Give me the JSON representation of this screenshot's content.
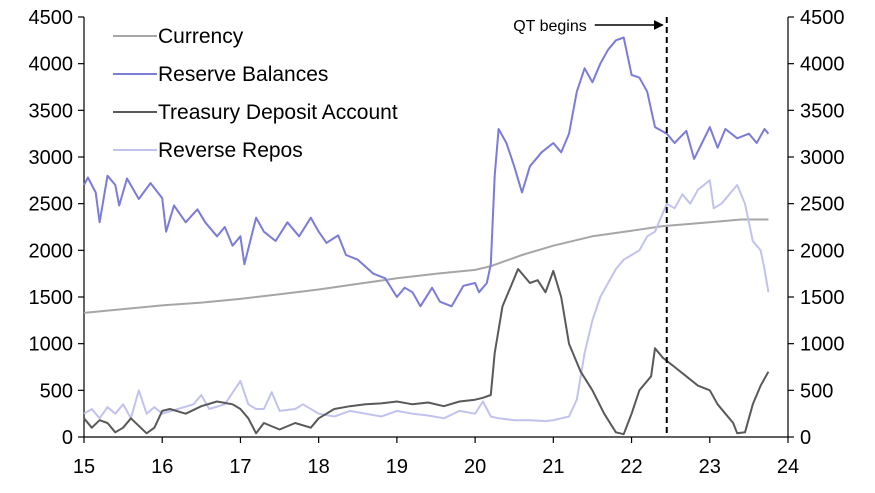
{
  "chart_data": {
    "type": "line",
    "title": "",
    "xlabel": "",
    "ylabel": "",
    "xlim": [
      15,
      24
    ],
    "ylim": [
      0,
      4500
    ],
    "y2lim": [
      0,
      4500
    ],
    "x_ticks": [
      "15",
      "16",
      "17",
      "18",
      "19",
      "20",
      "21",
      "22",
      "23",
      "24"
    ],
    "y_ticks": [
      "0",
      "500",
      "1000",
      "1500",
      "2000",
      "2500",
      "3000",
      "3500",
      "4000",
      "4500"
    ],
    "y2_ticks": [
      "0",
      "500",
      "1000",
      "1500",
      "2000",
      "2500",
      "3000",
      "3500",
      "4000",
      "4500"
    ],
    "grid": false,
    "legend_position": "top-left",
    "colors": {
      "currency": "#a6a6a6",
      "reserve_balances": "#7b7bd9",
      "treasury_deposit_account": "#595959",
      "reverse_repos": "#c2c2ef"
    },
    "series": [
      {
        "name": "Currency",
        "color": "#a6a6a6",
        "points": [
          [
            15.0,
            1330
          ],
          [
            15.5,
            1370
          ],
          [
            16.0,
            1410
          ],
          [
            16.5,
            1440
          ],
          [
            17.0,
            1480
          ],
          [
            17.5,
            1530
          ],
          [
            18.0,
            1580
          ],
          [
            18.5,
            1640
          ],
          [
            19.0,
            1700
          ],
          [
            19.5,
            1750
          ],
          [
            20.0,
            1790
          ],
          [
            20.2,
            1830
          ],
          [
            20.4,
            1890
          ],
          [
            20.6,
            1950
          ],
          [
            21.0,
            2050
          ],
          [
            21.5,
            2150
          ],
          [
            22.0,
            2210
          ],
          [
            22.4,
            2260
          ],
          [
            23.0,
            2300
          ],
          [
            23.4,
            2330
          ],
          [
            23.75,
            2330
          ]
        ]
      },
      {
        "name": "Reserve Balances",
        "color": "#7b7bd9",
        "points": [
          [
            15.0,
            2700
          ],
          [
            15.05,
            2780
          ],
          [
            15.15,
            2620
          ],
          [
            15.2,
            2300
          ],
          [
            15.3,
            2800
          ],
          [
            15.4,
            2700
          ],
          [
            15.45,
            2480
          ],
          [
            15.55,
            2770
          ],
          [
            15.7,
            2550
          ],
          [
            15.85,
            2720
          ],
          [
            16.0,
            2560
          ],
          [
            16.05,
            2200
          ],
          [
            16.15,
            2480
          ],
          [
            16.3,
            2300
          ],
          [
            16.45,
            2440
          ],
          [
            16.55,
            2300
          ],
          [
            16.7,
            2150
          ],
          [
            16.8,
            2250
          ],
          [
            16.9,
            2050
          ],
          [
            17.0,
            2150
          ],
          [
            17.05,
            1850
          ],
          [
            17.2,
            2350
          ],
          [
            17.3,
            2200
          ],
          [
            17.45,
            2100
          ],
          [
            17.6,
            2300
          ],
          [
            17.75,
            2150
          ],
          [
            17.9,
            2350
          ],
          [
            18.0,
            2200
          ],
          [
            18.1,
            2080
          ],
          [
            18.25,
            2160
          ],
          [
            18.35,
            1950
          ],
          [
            18.5,
            1900
          ],
          [
            18.7,
            1750
          ],
          [
            18.85,
            1700
          ],
          [
            19.0,
            1500
          ],
          [
            19.1,
            1600
          ],
          [
            19.2,
            1550
          ],
          [
            19.3,
            1400
          ],
          [
            19.45,
            1600
          ],
          [
            19.55,
            1450
          ],
          [
            19.7,
            1400
          ],
          [
            19.85,
            1620
          ],
          [
            20.0,
            1650
          ],
          [
            20.05,
            1550
          ],
          [
            20.15,
            1650
          ],
          [
            20.2,
            1850
          ],
          [
            20.25,
            2800
          ],
          [
            20.3,
            3300
          ],
          [
            20.4,
            3150
          ],
          [
            20.5,
            2900
          ],
          [
            20.6,
            2620
          ],
          [
            20.7,
            2900
          ],
          [
            20.85,
            3050
          ],
          [
            21.0,
            3150
          ],
          [
            21.1,
            3050
          ],
          [
            21.2,
            3250
          ],
          [
            21.3,
            3700
          ],
          [
            21.4,
            3950
          ],
          [
            21.5,
            3800
          ],
          [
            21.6,
            4000
          ],
          [
            21.7,
            4150
          ],
          [
            21.8,
            4250
          ],
          [
            21.9,
            4280
          ],
          [
            22.0,
            3880
          ],
          [
            22.1,
            3850
          ],
          [
            22.2,
            3700
          ],
          [
            22.3,
            3320
          ],
          [
            22.45,
            3250
          ],
          [
            22.55,
            3150
          ],
          [
            22.7,
            3280
          ],
          [
            22.8,
            2980
          ],
          [
            22.9,
            3150
          ],
          [
            23.0,
            3320
          ],
          [
            23.1,
            3100
          ],
          [
            23.2,
            3300
          ],
          [
            23.35,
            3200
          ],
          [
            23.5,
            3250
          ],
          [
            23.6,
            3150
          ],
          [
            23.7,
            3300
          ],
          [
            23.75,
            3250
          ]
        ]
      },
      {
        "name": "Treasury Deposit Account",
        "color": "#595959",
        "points": [
          [
            15.0,
            200
          ],
          [
            15.1,
            100
          ],
          [
            15.2,
            180
          ],
          [
            15.3,
            150
          ],
          [
            15.4,
            50
          ],
          [
            15.5,
            100
          ],
          [
            15.6,
            200
          ],
          [
            15.8,
            40
          ],
          [
            15.9,
            100
          ],
          [
            16.0,
            280
          ],
          [
            16.1,
            300
          ],
          [
            16.3,
            250
          ],
          [
            16.5,
            330
          ],
          [
            16.7,
            380
          ],
          [
            16.9,
            350
          ],
          [
            17.0,
            300
          ],
          [
            17.1,
            200
          ],
          [
            17.2,
            40
          ],
          [
            17.3,
            150
          ],
          [
            17.5,
            80
          ],
          [
            17.7,
            150
          ],
          [
            17.9,
            100
          ],
          [
            18.0,
            200
          ],
          [
            18.2,
            300
          ],
          [
            18.4,
            330
          ],
          [
            18.6,
            350
          ],
          [
            18.8,
            360
          ],
          [
            19.0,
            380
          ],
          [
            19.2,
            350
          ],
          [
            19.4,
            370
          ],
          [
            19.6,
            330
          ],
          [
            19.8,
            380
          ],
          [
            20.0,
            400
          ],
          [
            20.1,
            420
          ],
          [
            20.2,
            450
          ],
          [
            20.25,
            900
          ],
          [
            20.35,
            1400
          ],
          [
            20.45,
            1600
          ],
          [
            20.55,
            1800
          ],
          [
            20.7,
            1650
          ],
          [
            20.8,
            1680
          ],
          [
            20.9,
            1550
          ],
          [
            21.0,
            1780
          ],
          [
            21.1,
            1500
          ],
          [
            21.2,
            1000
          ],
          [
            21.35,
            700
          ],
          [
            21.5,
            500
          ],
          [
            21.65,
            250
          ],
          [
            21.8,
            50
          ],
          [
            21.9,
            30
          ],
          [
            22.0,
            250
          ],
          [
            22.1,
            500
          ],
          [
            22.25,
            650
          ],
          [
            22.3,
            950
          ],
          [
            22.4,
            850
          ],
          [
            22.55,
            750
          ],
          [
            22.7,
            650
          ],
          [
            22.85,
            550
          ],
          [
            23.0,
            500
          ],
          [
            23.1,
            350
          ],
          [
            23.2,
            250
          ],
          [
            23.3,
            150
          ],
          [
            23.35,
            40
          ],
          [
            23.45,
            50
          ],
          [
            23.55,
            350
          ],
          [
            23.65,
            550
          ],
          [
            23.75,
            700
          ]
        ]
      },
      {
        "name": "Reverse Repos",
        "color": "#c2c2ef",
        "points": [
          [
            15.0,
            250
          ],
          [
            15.1,
            300
          ],
          [
            15.2,
            200
          ],
          [
            15.3,
            320
          ],
          [
            15.4,
            250
          ],
          [
            15.5,
            350
          ],
          [
            15.6,
            200
          ],
          [
            15.7,
            500
          ],
          [
            15.8,
            250
          ],
          [
            15.9,
            320
          ],
          [
            16.0,
            250
          ],
          [
            16.2,
            300
          ],
          [
            16.4,
            350
          ],
          [
            16.5,
            450
          ],
          [
            16.6,
            300
          ],
          [
            16.8,
            350
          ],
          [
            17.0,
            600
          ],
          [
            17.1,
            350
          ],
          [
            17.2,
            300
          ],
          [
            17.3,
            300
          ],
          [
            17.4,
            480
          ],
          [
            17.5,
            280
          ],
          [
            17.7,
            300
          ],
          [
            17.8,
            350
          ],
          [
            18.0,
            250
          ],
          [
            18.2,
            220
          ],
          [
            18.4,
            280
          ],
          [
            18.6,
            250
          ],
          [
            18.8,
            220
          ],
          [
            19.0,
            280
          ],
          [
            19.2,
            250
          ],
          [
            19.4,
            230
          ],
          [
            19.6,
            200
          ],
          [
            19.8,
            280
          ],
          [
            20.0,
            250
          ],
          [
            20.1,
            380
          ],
          [
            20.2,
            220
          ],
          [
            20.3,
            200
          ],
          [
            20.5,
            180
          ],
          [
            20.7,
            180
          ],
          [
            20.9,
            170
          ],
          [
            21.0,
            180
          ],
          [
            21.2,
            220
          ],
          [
            21.3,
            400
          ],
          [
            21.4,
            900
          ],
          [
            21.5,
            1250
          ],
          [
            21.6,
            1500
          ],
          [
            21.7,
            1650
          ],
          [
            21.8,
            1800
          ],
          [
            21.9,
            1900
          ],
          [
            22.0,
            1950
          ],
          [
            22.1,
            2000
          ],
          [
            22.2,
            2150
          ],
          [
            22.3,
            2200
          ],
          [
            22.35,
            2300
          ],
          [
            22.45,
            2500
          ],
          [
            22.55,
            2450
          ],
          [
            22.65,
            2600
          ],
          [
            22.75,
            2500
          ],
          [
            22.85,
            2650
          ],
          [
            23.0,
            2750
          ],
          [
            23.05,
            2450
          ],
          [
            23.15,
            2500
          ],
          [
            23.25,
            2600
          ],
          [
            23.35,
            2700
          ],
          [
            23.45,
            2500
          ],
          [
            23.55,
            2100
          ],
          [
            23.65,
            2000
          ],
          [
            23.7,
            1800
          ],
          [
            23.75,
            1550
          ]
        ]
      }
    ],
    "annotations": [
      {
        "text": "QT begins",
        "x": 22.45,
        "style": "dashed vertical line with arrow"
      }
    ]
  }
}
